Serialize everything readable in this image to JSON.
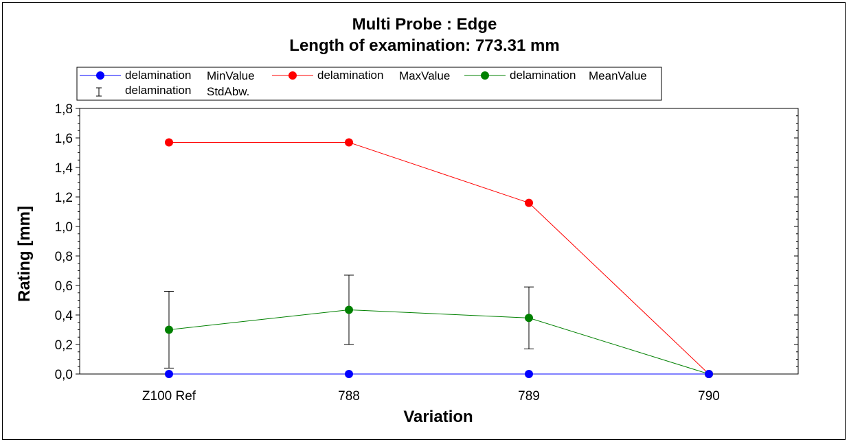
{
  "chart_data": {
    "type": "line",
    "title": "Multi Probe : Edge",
    "subtitle": "Length of examination: 773.31 mm",
    "xlabel": "Variation",
    "ylabel": "Rating [mm]",
    "categories": [
      "Z100 Ref",
      "788",
      "789",
      "790"
    ],
    "ylim": [
      0,
      1.8
    ],
    "yticks": [
      "0,0",
      "0,2",
      "0,4",
      "0,6",
      "0,8",
      "1,0",
      "1,2",
      "1,4",
      "1,6",
      "1,8"
    ],
    "grid": false,
    "legend_position": "top",
    "series": [
      {
        "name": "MinValue",
        "legend_label": "delamination",
        "color": "#0000ff",
        "values": [
          0.0,
          0.0,
          0.0,
          0.0
        ]
      },
      {
        "name": "MaxValue",
        "legend_label": "delamination",
        "color": "#ff0000",
        "values": [
          1.57,
          1.57,
          1.16,
          0.0
        ]
      },
      {
        "name": "MeanValue",
        "legend_label": "delamination",
        "color": "#008000",
        "values": [
          0.3,
          0.435,
          0.38,
          0.0
        ]
      }
    ],
    "error_bars": {
      "name": "StdAbw.",
      "legend_label": "delamination",
      "applies_to": "MeanValue",
      "std": [
        0.26,
        0.235,
        0.21,
        0.0
      ]
    }
  }
}
